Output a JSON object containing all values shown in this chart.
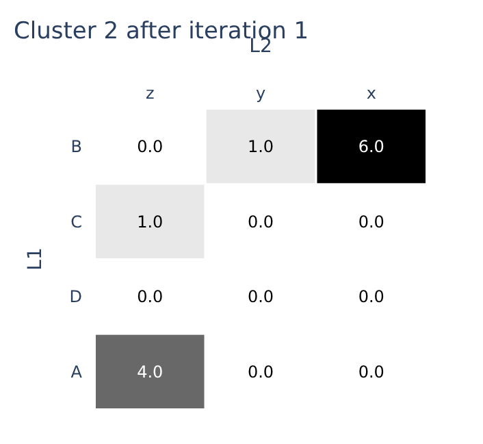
{
  "chart_data": {
    "type": "heatmap",
    "title": "Cluster 2 after iteration 1",
    "xlabel": "L2",
    "ylabel": "L1",
    "categories": [
      "z",
      "y",
      "x"
    ],
    "y_categories": [
      "B",
      "C",
      "D",
      "A"
    ],
    "cells": [
      [
        0,
        1,
        6
      ],
      [
        1,
        0,
        0
      ],
      [
        0,
        0,
        0
      ],
      [
        4,
        0,
        0
      ]
    ],
    "cell_labels": [
      [
        "0.0",
        "1.0",
        "6.0"
      ],
      [
        "1.0",
        "0.0",
        "0.0"
      ],
      [
        "0.0",
        "0.0",
        "0.0"
      ],
      [
        "4.0",
        "0.0",
        "0.0"
      ]
    ]
  }
}
